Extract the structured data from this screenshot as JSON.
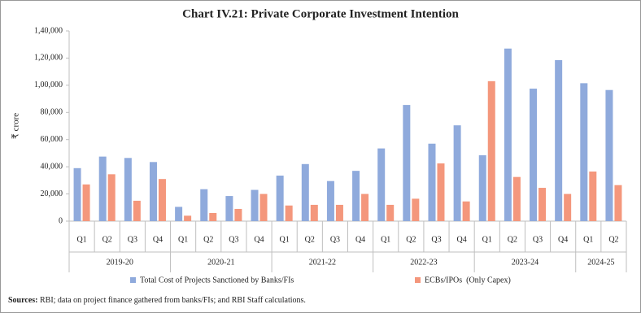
{
  "chart_data": {
    "type": "bar",
    "title": "Chart IV.21: Private Corporate Investment Intention",
    "y_label": "₹ crore",
    "groups": [
      {
        "name": "2019-20",
        "categories": [
          "Q1",
          "Q2",
          "Q3",
          "Q4"
        ]
      },
      {
        "name": "2020-21",
        "categories": [
          "Q1",
          "Q2",
          "Q3",
          "Q4"
        ]
      },
      {
        "name": "2021-22",
        "categories": [
          "Q1",
          "Q2",
          "Q3",
          "Q4"
        ]
      },
      {
        "name": "2022-23",
        "categories": [
          "Q1",
          "Q2",
          "Q3",
          "Q4"
        ]
      },
      {
        "name": "2023-24",
        "categories": [
          "Q1",
          "Q2",
          "Q3",
          "Q4"
        ]
      },
      {
        "name": "2024-25",
        "categories": [
          "Q1",
          "Q2"
        ]
      }
    ],
    "series": [
      {
        "name": "Total Cost of Projects Sanctioned by Banks/FIs",
        "color": "#8faadc",
        "values": [
          39000,
          47500,
          46500,
          43500,
          10500,
          23500,
          18500,
          23000,
          33500,
          42000,
          29500,
          37000,
          53500,
          85500,
          57000,
          70500,
          48500,
          127000,
          97500,
          118500,
          101500,
          96500
        ]
      },
      {
        "name": "ECBs/IPOs  (Only Capex)",
        "color": "#f4977c",
        "values": [
          27000,
          34500,
          15000,
          31000,
          4000,
          6000,
          9000,
          20000,
          11500,
          12000,
          12000,
          20000,
          12000,
          16500,
          42500,
          14500,
          103000,
          32500,
          24500,
          20000,
          36500,
          26500
        ]
      }
    ],
    "ylim": [
      0,
      140000
    ],
    "yticks": [
      0,
      {
        "value": 20000,
        "label": "20,000"
      },
      {
        "value": 40000,
        "label": "40,000"
      },
      {
        "value": 60000,
        "label": "60,000"
      },
      {
        "value": 80000,
        "label": "80,000"
      },
      {
        "value": 100000,
        "label": "1,00,000"
      },
      {
        "value": 120000,
        "label": "1,20,000"
      },
      {
        "value": 140000,
        "label": "1,40,000"
      }
    ],
    "grid": false,
    "source_label": "Sources:",
    "source_text": " RBI; data on project finance gathered from banks/FIs; and RBI Staff calculations."
  }
}
